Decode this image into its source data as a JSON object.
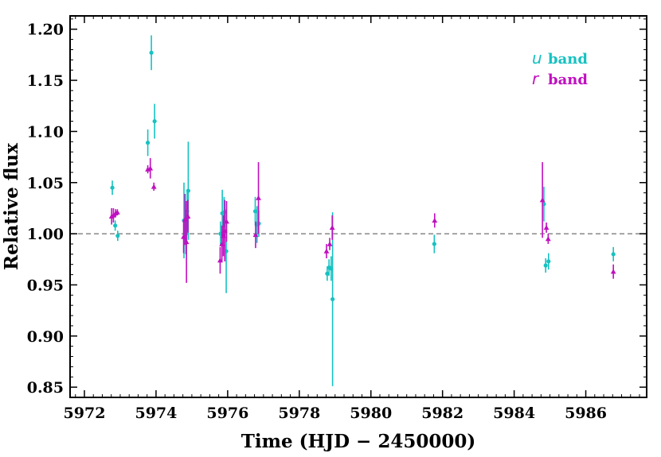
{
  "chart_data": {
    "type": "scatter",
    "title": "",
    "xlabel": "Time (HJD − 2450000)",
    "ylabel": "Relative flux",
    "xlim": [
      5971.6,
      5987.7
    ],
    "ylim": [
      0.84,
      1.213
    ],
    "xticks": [
      5972,
      5974,
      5976,
      5978,
      5980,
      5982,
      5984,
      5986
    ],
    "xtick_labels": [
      "5972",
      "5974",
      "5976",
      "5978",
      "5980",
      "5982",
      "5984",
      "5986"
    ],
    "yticks": [
      0.85,
      0.9,
      0.95,
      1.0,
      1.05,
      1.1,
      1.15,
      1.2
    ],
    "ytick_labels": [
      "0.85",
      "0.90",
      "0.95",
      "1.00",
      "1.05",
      "1.10",
      "1.15",
      "1.20"
    ],
    "reference_line": 1.0,
    "legend_position": "top-right",
    "series": [
      {
        "name": "u band",
        "legend_symbol": "u",
        "legend_text": "band",
        "color": "#17c1c1",
        "marker": "circle",
        "points": [
          {
            "x": 5972.78,
            "y": 1.045,
            "err": 0.007
          },
          {
            "x": 5972.86,
            "y": 1.008,
            "err": 0.005
          },
          {
            "x": 5972.93,
            "y": 0.998,
            "err": 0.005
          },
          {
            "x": 5973.77,
            "y": 1.089,
            "err": 0.013
          },
          {
            "x": 5973.87,
            "y": 1.177,
            "err": 0.017
          },
          {
            "x": 5973.96,
            "y": 1.11,
            "err": 0.017
          },
          {
            "x": 5974.78,
            "y": 1.013,
            "err": 0.037
          },
          {
            "x": 5974.83,
            "y": 1.0,
            "err": 0.02
          },
          {
            "x": 5974.87,
            "y": 1.022,
            "err": 0.02
          },
          {
            "x": 5974.9,
            "y": 1.042,
            "err": 0.048
          },
          {
            "x": 5975.8,
            "y": 1.0,
            "err": 0.012
          },
          {
            "x": 5975.85,
            "y": 1.02,
            "err": 0.023
          },
          {
            "x": 5975.9,
            "y": 1.021,
            "err": 0.015
          },
          {
            "x": 5975.96,
            "y": 0.983,
            "err": 0.041
          },
          {
            "x": 5976.77,
            "y": 1.022,
            "err": 0.014
          },
          {
            "x": 5976.82,
            "y": 1.009,
            "err": 0.018
          },
          {
            "x": 5976.87,
            "y": 1.01,
            "err": 0.013
          },
          {
            "x": 5978.78,
            "y": 0.961,
            "err": 0.007
          },
          {
            "x": 5978.83,
            "y": 0.967,
            "err": 0.008
          },
          {
            "x": 5978.89,
            "y": 0.966,
            "err": 0.012
          },
          {
            "x": 5978.93,
            "y": 0.936,
            "err": 0.085
          },
          {
            "x": 5981.77,
            "y": 0.99,
            "err": 0.009
          },
          {
            "x": 5984.83,
            "y": 1.029,
            "err": 0.017
          },
          {
            "x": 5984.88,
            "y": 0.969,
            "err": 0.007
          },
          {
            "x": 5984.96,
            "y": 0.973,
            "err": 0.008
          },
          {
            "x": 5986.77,
            "y": 0.98,
            "err": 0.007
          }
        ]
      },
      {
        "name": "r band",
        "legend_symbol": "r",
        "legend_text": "band",
        "color": "#c010c0",
        "marker": "triangle",
        "points": [
          {
            "x": 5972.76,
            "y": 1.017,
            "err": 0.008
          },
          {
            "x": 5972.81,
            "y": 1.018,
            "err": 0.007
          },
          {
            "x": 5972.87,
            "y": 1.02,
            "err": 0.004
          },
          {
            "x": 5972.92,
            "y": 1.021,
            "err": 0.003
          },
          {
            "x": 5973.77,
            "y": 1.063,
            "err": 0.004
          },
          {
            "x": 5973.84,
            "y": 1.064,
            "err": 0.01
          },
          {
            "x": 5973.94,
            "y": 1.046,
            "err": 0.004
          },
          {
            "x": 5974.77,
            "y": 0.997,
            "err": 0.016
          },
          {
            "x": 5974.81,
            "y": 1.014,
            "err": 0.025
          },
          {
            "x": 5974.85,
            "y": 0.992,
            "err": 0.04
          },
          {
            "x": 5974.89,
            "y": 1.017,
            "err": 0.016
          },
          {
            "x": 5975.79,
            "y": 0.974,
            "err": 0.013
          },
          {
            "x": 5975.84,
            "y": 0.99,
            "err": 0.018
          },
          {
            "x": 5975.88,
            "y": 0.998,
            "err": 0.02
          },
          {
            "x": 5975.92,
            "y": 1.003,
            "err": 0.03
          },
          {
            "x": 5975.97,
            "y": 1.012,
            "err": 0.02
          },
          {
            "x": 5976.78,
            "y": 0.999,
            "err": 0.013
          },
          {
            "x": 5976.86,
            "y": 1.035,
            "err": 0.035
          },
          {
            "x": 5978.76,
            "y": 0.983,
            "err": 0.007
          },
          {
            "x": 5978.85,
            "y": 0.99,
            "err": 0.006
          },
          {
            "x": 5978.92,
            "y": 1.006,
            "err": 0.012
          },
          {
            "x": 5981.78,
            "y": 1.013,
            "err": 0.007
          },
          {
            "x": 5984.79,
            "y": 1.033,
            "err": 0.037
          },
          {
            "x": 5984.9,
            "y": 1.006,
            "err": 0.005
          },
          {
            "x": 5984.95,
            "y": 0.995,
            "err": 0.005
          },
          {
            "x": 5986.77,
            "y": 0.963,
            "err": 0.007
          }
        ]
      }
    ]
  }
}
